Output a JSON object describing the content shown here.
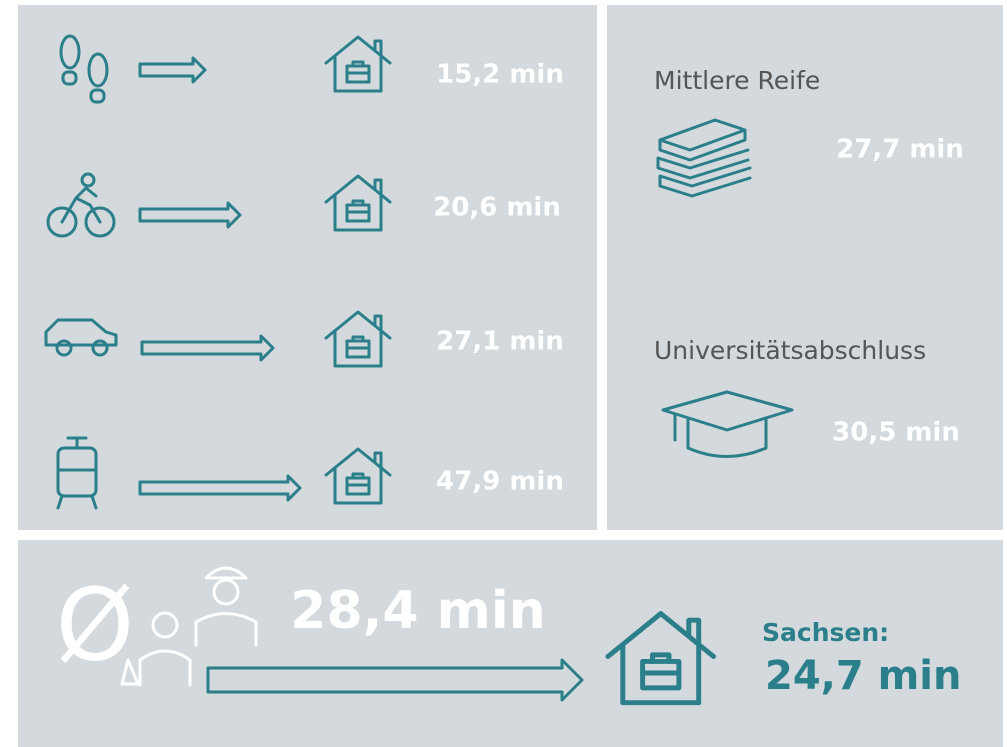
{
  "modes": [
    "15,2 min",
    "20,6 min",
    "27,1 min",
    "47,9 min"
  ],
  "degrees": [
    {
      "title": "Mittlere Reife",
      "time": "27,7 min"
    },
    {
      "title": "Universitätsabschluss",
      "time": "30,5 min"
    }
  ],
  "average": {
    "symbol": "Ø",
    "time": "28,4 min",
    "region": "Sachsen:",
    "region_time": "24,7 min"
  }
}
